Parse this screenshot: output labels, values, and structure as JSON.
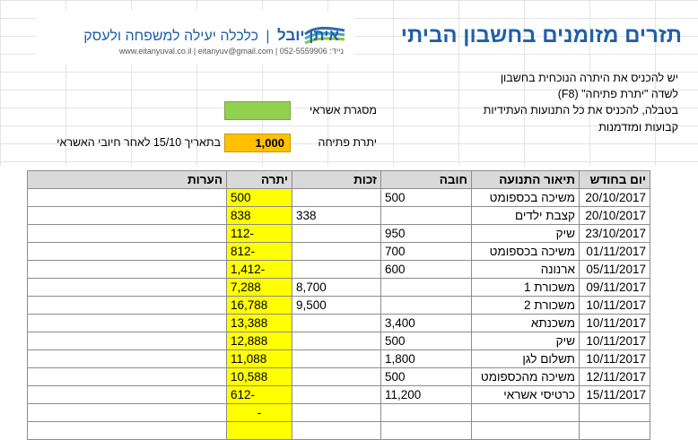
{
  "title": "תזרים מזומנים בחשבון הביתי",
  "brand": {
    "name": "איתן יובל",
    "separator": "|",
    "tagline": "כלכלה יעילה למשפחה ולעסק",
    "contact": "נייד: 052-5559906 | www.eitanyuval.co.il | eitanyuv@gmail.com"
  },
  "instructions": {
    "line1": "יש להכניס את היתרה הנוכחית בחשבון",
    "line2": "לשדה \"יתרת פתיחה\" (F8)",
    "line3": "בטבלה, להכניס את כל התנועות העתידיות",
    "line4": "קבועות ומזדמנות"
  },
  "credit_frame_label": "מסגרת אשראי",
  "opening_balance": {
    "label": "יתרת פתיחה",
    "value": "1,000",
    "note": "בתאריך 15/10 לאחר חיובי האשראי"
  },
  "colors": {
    "title": "#1f5fa8",
    "credit_cell": "#92d050",
    "opening_cell": "#ffc000",
    "balance_col": "#ffff00",
    "header_bg": "#d9d9d9"
  },
  "table": {
    "headers": {
      "date": "יום בחודש",
      "desc": "תיאור התנועה",
      "debit": "חובה",
      "credit": "זכות",
      "balance": "יתרה",
      "notes": "הערות"
    },
    "rows": [
      {
        "date": "20/10/2017",
        "desc": "משיכה בכספומט",
        "debit": "500",
        "credit": "",
        "balance": "500",
        "notes": ""
      },
      {
        "date": "20/10/2017",
        "desc": "קצבת ילדים",
        "debit": "",
        "credit": "338",
        "balance": "838",
        "notes": ""
      },
      {
        "date": "23/10/2017",
        "desc": "שיק",
        "debit": "950",
        "credit": "",
        "balance": "-112",
        "notes": ""
      },
      {
        "date": "01/11/2017",
        "desc": "משיכה בכספומט",
        "debit": "700",
        "credit": "",
        "balance": "-812",
        "notes": ""
      },
      {
        "date": "05/11/2017",
        "desc": "ארנונה",
        "debit": "600",
        "credit": "",
        "balance": "-1,412",
        "notes": ""
      },
      {
        "date": "09/11/2017",
        "desc": "משכורת 1",
        "debit": "",
        "credit": "8,700",
        "balance": "7,288",
        "notes": ""
      },
      {
        "date": "10/11/2017",
        "desc": "משכורת 2",
        "debit": "",
        "credit": "9,500",
        "balance": "16,788",
        "notes": ""
      },
      {
        "date": "10/11/2017",
        "desc": "משכנתא",
        "debit": "3,400",
        "credit": "",
        "balance": "13,388",
        "notes": ""
      },
      {
        "date": "10/11/2017",
        "desc": "שיק",
        "debit": "500",
        "credit": "",
        "balance": "12,888",
        "notes": ""
      },
      {
        "date": "10/11/2017",
        "desc": "תשלום לגן",
        "debit": "1,800",
        "credit": "",
        "balance": "11,088",
        "notes": ""
      },
      {
        "date": "12/11/2017",
        "desc": "משיכה מהכספומט",
        "debit": "500",
        "credit": "",
        "balance": "10,588",
        "notes": ""
      },
      {
        "date": "15/11/2017",
        "desc": "כרטיסי אשראי",
        "debit": "11,200",
        "credit": "",
        "balance": "-612",
        "notes": ""
      },
      {
        "date": "",
        "desc": "",
        "debit": "",
        "credit": "",
        "balance": "-",
        "notes": ""
      },
      {
        "date": "",
        "desc": "",
        "debit": "",
        "credit": "",
        "balance": "",
        "notes": ""
      }
    ]
  }
}
